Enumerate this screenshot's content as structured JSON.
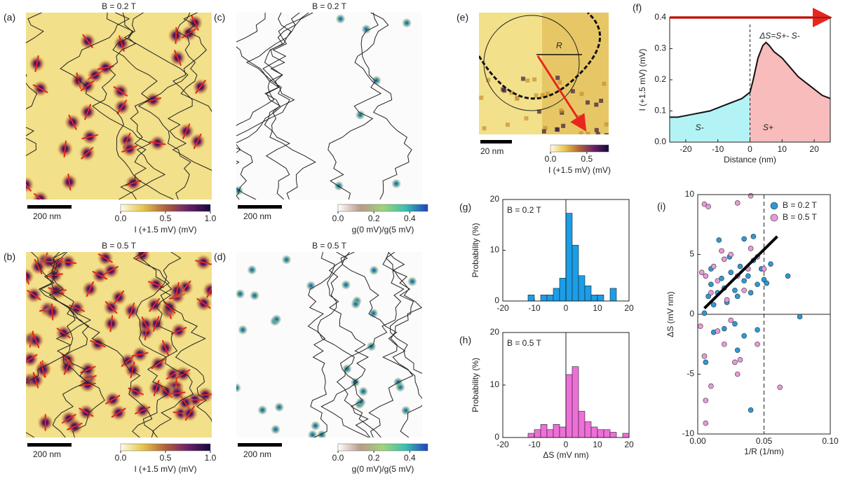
{
  "images": [
    {
      "label": "(a)",
      "title": "B = 0.2 T",
      "scale_bar": "200 nm",
      "kind": "topo",
      "colorbar": {
        "label": "I (+1.5 mV) (mV)",
        "lim": [
          0,
          1
        ],
        "ticks": [
          {
            "value": 0,
            "label": "0.0"
          },
          0.5,
          {
            "value": 1,
            "label": "1.0"
          }
        ],
        "colors": [
          "#fffbe3",
          "#e6c54a",
          "#b0603a",
          "#6a1f6a",
          "#14083a"
        ]
      }
    },
    {
      "label": "(b)",
      "title": "B = 0.5 T",
      "scale_bar": "200 nm",
      "kind": "topo",
      "colorbar": {
        "label": "I (+1.5 mV) (mV)",
        "lim": [
          0,
          1
        ],
        "ticks": [
          {
            "value": 0,
            "label": "0.0"
          },
          0.5,
          {
            "value": 1,
            "label": "1.0"
          }
        ],
        "colors": [
          "#fffbe3",
          "#e6c54a",
          "#b0603a",
          "#6a1f6a",
          "#14083a"
        ]
      }
    },
    {
      "label": "(c)",
      "title": "B = 0.2 T",
      "scale_bar": "200 nm",
      "kind": "cond",
      "colorbar": {
        "label": "g(0 mV)/g(5 mV)",
        "lim": [
          0,
          0.5
        ],
        "ticks": [
          {
            "value": 0,
            "label": "0.0"
          },
          0.2,
          0.4
        ],
        "colors": [
          "#ffffff",
          "#b89a8a",
          "#9fd47a",
          "#3ac0b0",
          "#2040c0"
        ]
      }
    },
    {
      "label": "(d)",
      "title": "B = 0.5 T",
      "scale_bar": "200 nm",
      "kind": "cond",
      "colorbar": {
        "label": "g(0 mV)/g(5 mV)",
        "lim": [
          0,
          0.5
        ],
        "ticks": [
          {
            "value": 0,
            "label": "0.0"
          },
          0.2,
          0.4
        ],
        "colors": [
          "#ffffff",
          "#b89a8a",
          "#9fd47a",
          "#3ac0b0",
          "#2040c0"
        ]
      }
    },
    {
      "label": "(e)",
      "scale_bar": "20 nm",
      "annotation": "R",
      "kind": "zoom",
      "colorbar": {
        "label": "I (+1.5 mV) (mV)",
        "lim": [
          0,
          0.8
        ],
        "ticks": [
          {
            "value": 0,
            "label": "0.0"
          },
          0.5
        ],
        "colors": [
          "#fffbe3",
          "#e6c54a",
          "#b0603a",
          "#6a1f6a",
          "#14083a"
        ]
      }
    }
  ],
  "chart_data": [
    {
      "type": "line",
      "label": "(f)",
      "xlabel": "Distance (nm)",
      "ylabel": "I (+1.5 mV) (mV)",
      "annotations": [
        "ΔS=S+- S-",
        "S-",
        "S+"
      ],
      "x": [
        -25,
        -22.5,
        -20,
        -17.5,
        -15,
        -12.5,
        -10,
        -7.5,
        -5,
        -2.5,
        0,
        1,
        2.5,
        4,
        5,
        6,
        7.5,
        10,
        12.5,
        15,
        17.5,
        20,
        22.5,
        25
      ],
      "values": [
        0.08,
        0.08,
        0.085,
        0.09,
        0.095,
        0.1,
        0.11,
        0.12,
        0.13,
        0.14,
        0.16,
        0.2,
        0.27,
        0.31,
        0.32,
        0.31,
        0.29,
        0.27,
        0.24,
        0.21,
        0.19,
        0.17,
        0.15,
        0.14
      ],
      "color": "#111",
      "area_colors": [
        "#b3f3f6",
        "#f8bcbc"
      ],
      "xlim": [
        -25,
        25
      ],
      "xticks": [
        -20,
        -10,
        0,
        10,
        20
      ],
      "ylim": [
        0,
        0.4
      ],
      "yticks": [
        {
          "value": 0,
          "label": "0.0"
        },
        0.1,
        0.2,
        0.3,
        0.4
      ]
    },
    {
      "type": "histogram",
      "label": "(g)",
      "annotation": "B = 0.2 T",
      "ylabel": "Probability (%)",
      "color": "#1a9ee8",
      "bins": [
        -12,
        -10,
        -8,
        -6,
        -4,
        -2,
        0,
        2,
        4,
        6,
        8,
        10,
        12,
        14,
        16
      ],
      "values": [
        1.2,
        0,
        1.2,
        1.2,
        2.5,
        4.5,
        17.3,
        11,
        5,
        3,
        1.2,
        1.2,
        0,
        2.5
      ],
      "xlim": [
        -20,
        20
      ],
      "xticks": [
        -20,
        -10,
        0,
        10,
        20
      ],
      "ylim": [
        0,
        20
      ],
      "yticks": [
        0,
        10,
        20
      ]
    },
    {
      "type": "histogram",
      "label": "(h)",
      "annotation": "B = 0.5 T",
      "ylabel": "Probability (%)",
      "xlabel": "ΔS (mV nm)",
      "color": "#ee6fd8",
      "bins": [
        -12,
        -10,
        -8,
        -6,
        -4,
        -2,
        0,
        2,
        4,
        6,
        8,
        10,
        12,
        14,
        16,
        18,
        20
      ],
      "values": [
        0.8,
        1.5,
        2.5,
        1.5,
        2.5,
        2,
        12,
        13.5,
        5,
        3,
        2,
        1.5,
        1.5,
        1,
        0,
        0.8
      ],
      "xlim": [
        -20,
        20
      ],
      "xticks": [
        -20,
        -10,
        0,
        10,
        20
      ],
      "ylim": [
        0,
        20
      ],
      "yticks": [
        0,
        10,
        20
      ]
    },
    {
      "type": "scatter",
      "label": "(i)",
      "xlabel": "1/R (1/nm)",
      "ylabel": "ΔS (mV nm)",
      "legend": "upper right",
      "xref": 0.05,
      "fit": {
        "x": [
          0.005,
          0.06
        ],
        "values": [
          0.5,
          6.5
        ]
      },
      "series": [
        {
          "name": "B = 0.2 T",
          "color": "#2a9ad6",
          "x": [
            0.005,
            0.008,
            0.01,
            0.012,
            0.015,
            0.018,
            0.02,
            0.022,
            0.025,
            0.028,
            0.03,
            0.032,
            0.035,
            0.038,
            0.04,
            0.042,
            0.045,
            0.048,
            0.05,
            0.052,
            0.055,
            0.068,
            0.077,
            0.012,
            0.02,
            0.028,
            0.035,
            0.04,
            0.03,
            0.045,
            0.006,
            0.016,
            0.035,
            0.042,
            0.024,
            0.01
          ],
          "values": [
            0.1,
            1.5,
            2.5,
            0.8,
            1.8,
            3,
            2.2,
            1,
            3.5,
            2,
            1.5,
            4,
            2.8,
            3.2,
            1.8,
            4.5,
            2.5,
            3.8,
            2.9,
            2.6,
            4.2,
            3.2,
            -0.2,
            -1.5,
            -1.2,
            -0.8,
            -1.8,
            -8,
            -3,
            -1.3,
            -4,
            6.2,
            6.3,
            6.5,
            4.8,
            3.8
          ]
        },
        {
          "name": "B = 0.5 T",
          "color": "#e89ad8",
          "x": [
            0.005,
            0.008,
            0.04,
            0.03,
            0.003,
            0.006,
            0.01,
            0.015,
            0.02,
            0.025,
            0.03,
            0.035,
            0.04,
            0.045,
            0.05,
            0.002,
            0.005,
            0.006,
            0.006,
            0.01,
            0.02,
            0.028,
            0.03,
            0.032,
            0.062,
            0.045,
            0.015,
            0.025,
            0.012,
            0.018,
            0.038,
            0.022
          ],
          "values": [
            9.2,
            9,
            9.9,
            9.3,
            3.5,
            3.2,
            1.8,
            2.8,
            4.6,
            5,
            3.2,
            2,
            5.5,
            4.8,
            3.8,
            -1,
            -3.5,
            -7.2,
            -9.1,
            -6,
            -2.5,
            -4,
            -5,
            -3.8,
            -6.1,
            -2.5,
            -1.4,
            -0.5,
            4,
            5.3,
            3.8,
            1.2
          ]
        }
      ],
      "xlim": [
        0,
        0.1
      ],
      "xticks": [
        {
          "value": 0,
          "label": "0.00"
        },
        {
          "value": 0.05,
          "label": "0.05"
        },
        {
          "value": 0.1,
          "label": "0.10"
        }
      ],
      "ylim": [
        -10,
        10
      ],
      "yticks": [
        -10,
        -5,
        0,
        5,
        10
      ]
    }
  ]
}
